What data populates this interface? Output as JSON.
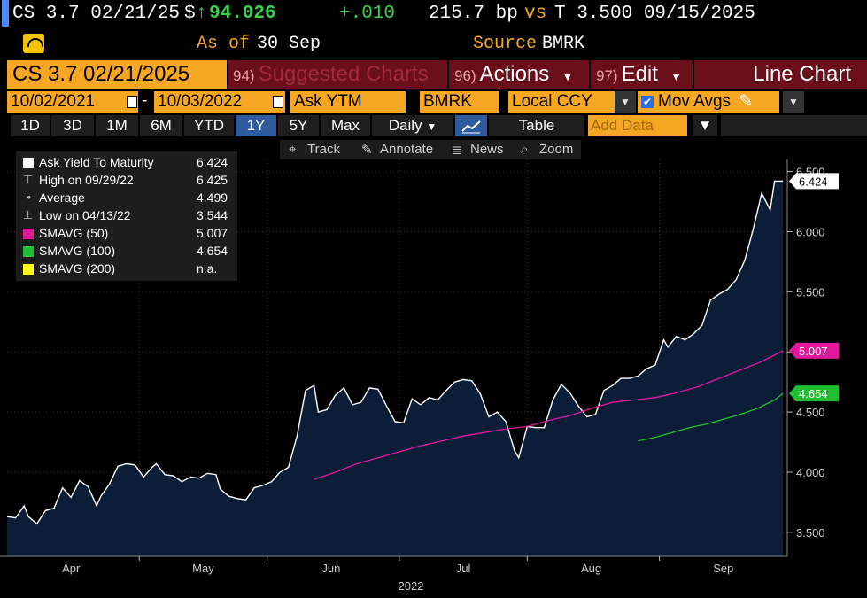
{
  "ticker": {
    "security": "CS 3.7 02/21/25",
    "currency": "$",
    "price": "94.026",
    "change": "+.010",
    "spread": "215.7 bp",
    "vs": "vs",
    "benchmark": "T 3.500 09/15/2025"
  },
  "asof": {
    "label": "As of",
    "date": "30 Sep",
    "source_label": "Source",
    "source": "BMRK"
  },
  "titlebar": {
    "security": "CS 3.7 02/21/2025",
    "suggested_num": "94)",
    "suggested": "Suggested Charts",
    "actions_num": "96)",
    "actions": "Actions",
    "edit_num": "97)",
    "edit": "Edit",
    "chart_type": "Line Chart"
  },
  "options": {
    "start_date": "10/02/2021",
    "dash": "-",
    "end_date": "10/03/2022",
    "field": "Ask YTM",
    "source": "BMRK",
    "currency": "Local CCY",
    "mov_avgs": "Mov Avgs",
    "mov_avgs_checked": true
  },
  "toolbar": {
    "periods": [
      "1D",
      "3D",
      "1M",
      "6M",
      "YTD",
      "1Y",
      "5Y",
      "Max"
    ],
    "selected_period": "1Y",
    "frequency": "Daily",
    "table": "Table",
    "add_data_placeholder": "Add Data"
  },
  "subtools": {
    "track": "Track",
    "annotate": "Annotate",
    "news": "News",
    "zoom": "Zoom"
  },
  "legend": [
    {
      "label": "Ask Yield To Maturity",
      "value": "6.424",
      "color": "#ffffff",
      "kind": "swatch"
    },
    {
      "label": "High on 09/29/22",
      "value": "6.425",
      "color": "#bbbbbb",
      "kind": "high"
    },
    {
      "label": "Average",
      "value": "4.499",
      "color": "#bbbbbb",
      "kind": "avg"
    },
    {
      "label": "Low on 04/13/22",
      "value": "3.544",
      "color": "#bbbbbb",
      "kind": "low"
    },
    {
      "label": "SMAVG (50)",
      "value": "5.007",
      "color": "#e0189c",
      "kind": "swatch"
    },
    {
      "label": "SMAVG (100)",
      "value": "4.654",
      "color": "#1fbf2f",
      "kind": "swatch"
    },
    {
      "label": "SMAVG (200)",
      "value": "n.a.",
      "color": "#ffff00",
      "kind": "swatch"
    }
  ],
  "chart_data": {
    "type": "area",
    "ylim": [
      3.3,
      6.6
    ],
    "y_ticks": [
      3.5,
      4.0,
      4.5,
      5.0,
      5.5,
      6.0,
      6.5
    ],
    "y_tick_labels": [
      "3.500",
      "4.000",
      "4.500",
      "5.000",
      "5.500",
      "6.000",
      "6.500"
    ],
    "x_month_labels": [
      "Apr",
      "May",
      "Jun",
      "Jul",
      "Aug",
      "Sep"
    ],
    "x_month_days": [
      15,
      46,
      76,
      107,
      137,
      168
    ],
    "x_boundaries": [
      31,
      61,
      92,
      122,
      153
    ],
    "x_year_label": "2022",
    "xlim": [
      0,
      183
    ],
    "x_unit_note": "day of period starting 2022-03-31",
    "series": [
      {
        "name": "Ask Yield To Maturity",
        "color": "#ffffff",
        "fill": "#0c1d38",
        "last_label": "6.424",
        "points": [
          [
            0,
            3.63
          ],
          [
            2,
            3.62
          ],
          [
            4,
            3.72
          ],
          [
            5,
            3.63
          ],
          [
            7,
            3.57
          ],
          [
            9,
            3.68
          ],
          [
            11,
            3.7
          ],
          [
            13,
            3.87
          ],
          [
            15,
            3.79
          ],
          [
            17,
            3.93
          ],
          [
            19,
            3.88
          ],
          [
            21,
            3.72
          ],
          [
            22,
            3.8
          ],
          [
            24,
            3.9
          ],
          [
            26,
            4.05
          ],
          [
            28,
            4.07
          ],
          [
            30,
            4.06
          ],
          [
            32,
            3.96
          ],
          [
            34,
            4.04
          ],
          [
            35,
            4.07
          ],
          [
            37,
            3.98
          ],
          [
            39,
            3.97
          ],
          [
            41,
            3.92
          ],
          [
            43,
            3.96
          ],
          [
            45,
            3.95
          ],
          [
            47,
            3.99
          ],
          [
            49,
            3.98
          ],
          [
            50,
            3.86
          ],
          [
            52,
            3.8
          ],
          [
            54,
            3.78
          ],
          [
            56,
            3.77
          ],
          [
            58,
            3.87
          ],
          [
            60,
            3.89
          ],
          [
            62,
            3.92
          ],
          [
            64,
            4.0
          ],
          [
            66,
            4.04
          ],
          [
            68,
            4.3
          ],
          [
            70,
            4.68
          ],
          [
            72,
            4.72
          ],
          [
            73,
            4.5
          ],
          [
            75,
            4.52
          ],
          [
            77,
            4.64
          ],
          [
            79,
            4.7
          ],
          [
            81,
            4.56
          ],
          [
            83,
            4.58
          ],
          [
            85,
            4.7
          ],
          [
            87,
            4.69
          ],
          [
            89,
            4.55
          ],
          [
            91,
            4.42
          ],
          [
            93,
            4.41
          ],
          [
            95,
            4.61
          ],
          [
            97,
            4.56
          ],
          [
            99,
            4.62
          ],
          [
            101,
            4.6
          ],
          [
            103,
            4.68
          ],
          [
            105,
            4.75
          ],
          [
            107,
            4.77
          ],
          [
            109,
            4.76
          ],
          [
            111,
            4.65
          ],
          [
            113,
            4.46
          ],
          [
            115,
            4.5
          ],
          [
            117,
            4.42
          ],
          [
            119,
            4.18
          ],
          [
            120,
            4.12
          ],
          [
            122,
            4.38
          ],
          [
            124,
            4.37
          ],
          [
            126,
            4.37
          ],
          [
            128,
            4.6
          ],
          [
            130,
            4.73
          ],
          [
            132,
            4.66
          ],
          [
            134,
            4.55
          ],
          [
            136,
            4.46
          ],
          [
            138,
            4.48
          ],
          [
            140,
            4.68
          ],
          [
            142,
            4.72
          ],
          [
            144,
            4.78
          ],
          [
            146,
            4.78
          ],
          [
            148,
            4.8
          ],
          [
            150,
            4.86
          ],
          [
            152,
            4.89
          ],
          [
            154,
            5.1
          ],
          [
            155,
            5.04
          ],
          [
            157,
            5.13
          ],
          [
            159,
            5.1
          ],
          [
            161,
            5.15
          ],
          [
            163,
            5.22
          ],
          [
            165,
            5.43
          ],
          [
            167,
            5.48
          ],
          [
            169,
            5.52
          ],
          [
            171,
            5.6
          ],
          [
            173,
            5.76
          ],
          [
            175,
            6.02
          ],
          [
            177,
            6.32
          ],
          [
            179,
            6.18
          ],
          [
            180,
            6.42
          ],
          [
            182,
            6.42
          ]
        ]
      },
      {
        "name": "SMAVG (50)",
        "color": "#e0189c",
        "last_label": "5.007",
        "points": [
          [
            72,
            3.94
          ],
          [
            77,
            4.0
          ],
          [
            82,
            4.07
          ],
          [
            87,
            4.12
          ],
          [
            92,
            4.17
          ],
          [
            97,
            4.22
          ],
          [
            102,
            4.26
          ],
          [
            107,
            4.3
          ],
          [
            112,
            4.33
          ],
          [
            117,
            4.36
          ],
          [
            122,
            4.38
          ],
          [
            127,
            4.43
          ],
          [
            132,
            4.47
          ],
          [
            137,
            4.53
          ],
          [
            142,
            4.58
          ],
          [
            147,
            4.6
          ],
          [
            152,
            4.62
          ],
          [
            157,
            4.66
          ],
          [
            162,
            4.71
          ],
          [
            167,
            4.78
          ],
          [
            172,
            4.85
          ],
          [
            177,
            4.92
          ],
          [
            182,
            5.01
          ]
        ]
      },
      {
        "name": "SMAVG (100)",
        "color": "#1fbf2f",
        "last_label": "4.654",
        "points": [
          [
            148,
            4.26
          ],
          [
            152,
            4.29
          ],
          [
            156,
            4.33
          ],
          [
            160,
            4.37
          ],
          [
            164,
            4.4
          ],
          [
            168,
            4.44
          ],
          [
            172,
            4.48
          ],
          [
            176,
            4.53
          ],
          [
            180,
            4.6
          ],
          [
            182,
            4.654
          ]
        ]
      }
    ]
  }
}
